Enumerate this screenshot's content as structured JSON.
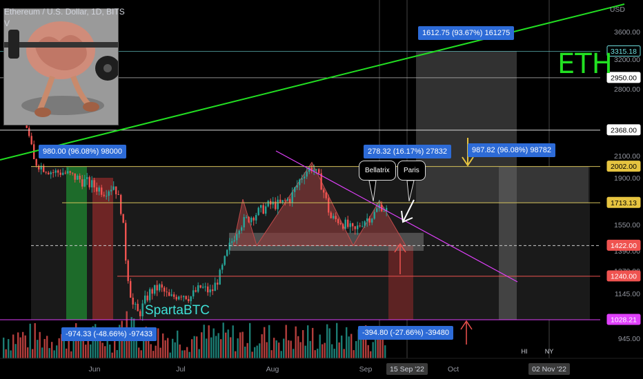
{
  "chart_data": {
    "type": "candlestick",
    "title": "Ethereum / U.S. Dollar, 1D, BITS",
    "title_suffix": "V",
    "currency_label": "USD",
    "x_tick_labels": [
      "Jun",
      "Jul",
      "Aug",
      "Sep",
      "Oct"
    ],
    "x_date_tags": [
      "15 Sep '22",
      "02 Nov '22"
    ],
    "session_tags": [
      "HI",
      "NY"
    ],
    "y_tick_labels": [
      "3600.00",
      "3200.00",
      "2800.00",
      "2100.00",
      "1900.00",
      "1550.00",
      "1390.00",
      "1270.00",
      "1145.00",
      "945.00"
    ],
    "price_tags": [
      {
        "value": "3315.18",
        "style": "cyan"
      },
      {
        "value": "2950.00",
        "style": "white"
      },
      {
        "value": "2368.00",
        "style": "white"
      },
      {
        "value": "2002.00",
        "style": "yellow"
      },
      {
        "value": "1713.13",
        "style": "yellow"
      },
      {
        "value": "1422.00",
        "style": "red"
      },
      {
        "value": "1240.00",
        "style": "red"
      },
      {
        "value": "1028.21",
        "style": "magenta"
      }
    ],
    "measurements": [
      "980.00 (96.08%) 98000",
      "1612.75 (93.67%) 161275",
      "278.32 (16.17%) 27832",
      "987.82 (96.08%) 98782",
      "-974.33 (-48.66%) -97433",
      "-394.80 (-27.66%) -39480"
    ],
    "callouts": [
      "Bellatrix",
      "Paris"
    ],
    "annotations": [
      "ETH",
      "SpartaBTC"
    ]
  },
  "colors": {
    "background": "#000000",
    "up": "#26a69a",
    "down": "#ef5350",
    "trend_green": "#22e022",
    "trend_magenta": "#e040fb",
    "level_yellow": "#d4c15a",
    "level_red": "#ef5350",
    "badge_blue": "#2d6bd7"
  }
}
